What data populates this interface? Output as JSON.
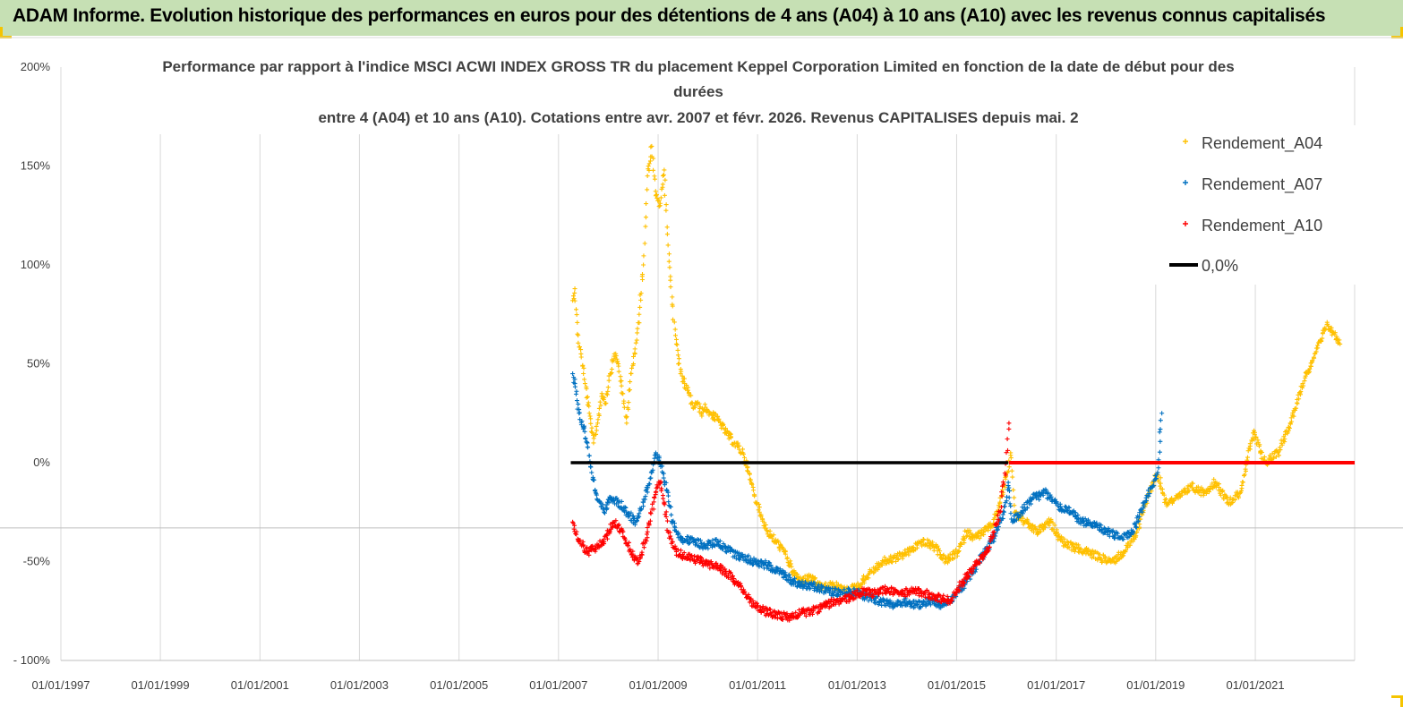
{
  "banner": {
    "title": "ADAM Informe. Evolution historique des performances en euros pour des détentions de 4 ans (A04) à 10 ans (A10) avec les revenus connus capitalisés",
    "background": "#c6e0b4",
    "corner_color": "#f5c400"
  },
  "chart_data": {
    "type": "scatter",
    "title_lines": [
      "Performance par rapport à l'indice MSCI ACWI INDEX GROSS TR  du placement Keppel Corporation Limited en fonction de la date de début pour des",
      "durées",
      "entre 4 (A04) et 10 ans (A10). Cotations entre avr. 2007 et févr. 2026. Revenus CAPITALISES depuis mai. 2"
    ],
    "x_axis": {
      "type": "date",
      "min": "1997-01-01",
      "max": "2022-12-31",
      "tick_labels": [
        "01/01/1997",
        "01/01/1999",
        "01/01/2001",
        "01/01/2003",
        "01/01/2005",
        "01/01/2007",
        "01/01/2009",
        "01/01/2011",
        "01/01/2013",
        "01/01/2015",
        "01/01/2017",
        "01/01/2019",
        "01/01/2021"
      ],
      "tick_dates": [
        "1997-01-01",
        "1999-01-01",
        "2001-01-01",
        "2003-01-01",
        "2005-01-01",
        "2007-01-01",
        "2009-01-01",
        "2011-01-01",
        "2013-01-01",
        "2015-01-01",
        "2017-01-01",
        "2019-01-01",
        "2021-01-01"
      ]
    },
    "y_axis": {
      "min": -100,
      "max": 200,
      "unit": "%",
      "tick_values": [
        200,
        150,
        100,
        50,
        0,
        -50,
        -100
      ],
      "tick_labels": [
        "200%",
        "150%",
        "100%",
        "50%",
        "0%",
        "-50%",
        "- 100%"
      ]
    },
    "grid": "vertical",
    "legend": {
      "placement": "top-right",
      "entries": [
        {
          "label": "Rendement_A04",
          "color": "#ffc000",
          "marker": "+"
        },
        {
          "label": "Rendement_A07",
          "color": "#0070c0",
          "marker": "+"
        },
        {
          "label": "Rendement_A10",
          "color": "#ff0000",
          "marker": "+"
        },
        {
          "label": "0,0%",
          "color": "#000000",
          "marker": "line"
        }
      ]
    },
    "series": [
      {
        "name": "Rendement_A04",
        "color": "#ffc000",
        "points": [
          [
            "2007-04-15",
            82
          ],
          [
            "2007-05-01",
            88
          ],
          [
            "2007-05-20",
            65
          ],
          [
            "2007-06-15",
            55
          ],
          [
            "2007-07-15",
            40
          ],
          [
            "2007-08-15",
            25
          ],
          [
            "2007-09-15",
            10
          ],
          [
            "2007-10-15",
            20
          ],
          [
            "2007-11-15",
            35
          ],
          [
            "2007-12-15",
            30
          ],
          [
            "2008-01-15",
            45
          ],
          [
            "2008-02-15",
            55
          ],
          [
            "2008-03-15",
            50
          ],
          [
            "2008-04-15",
            35
          ],
          [
            "2008-05-15",
            20
          ],
          [
            "2008-06-15",
            45
          ],
          [
            "2008-07-15",
            55
          ],
          [
            "2008-08-15",
            75
          ],
          [
            "2008-09-15",
            100
          ],
          [
            "2008-10-15",
            145
          ],
          [
            "2008-11-15",
            160
          ],
          [
            "2008-12-15",
            135
          ],
          [
            "2009-01-15",
            130
          ],
          [
            "2009-02-15",
            148
          ],
          [
            "2009-03-15",
            110
          ],
          [
            "2009-04-15",
            80
          ],
          [
            "2009-05-15",
            60
          ],
          [
            "2009-06-15",
            45
          ],
          [
            "2009-07-15",
            40
          ],
          [
            "2009-08-15",
            35
          ],
          [
            "2009-09-15",
            28
          ],
          [
            "2009-10-15",
            30
          ],
          [
            "2009-11-15",
            25
          ],
          [
            "2009-12-15",
            28
          ],
          [
            "2010-01-15",
            25
          ],
          [
            "2010-03-15",
            22
          ],
          [
            "2010-05-15",
            15
          ],
          [
            "2010-07-15",
            10
          ],
          [
            "2010-09-15",
            5
          ],
          [
            "2010-11-15",
            -10
          ],
          [
            "2011-01-15",
            -25
          ],
          [
            "2011-03-15",
            -35
          ],
          [
            "2011-05-15",
            -40
          ],
          [
            "2011-07-15",
            -45
          ],
          [
            "2011-09-15",
            -55
          ],
          [
            "2011-11-15",
            -60
          ],
          [
            "2012-01-15",
            -58
          ],
          [
            "2012-04-15",
            -63
          ],
          [
            "2012-07-15",
            -62
          ],
          [
            "2012-10-15",
            -65
          ],
          [
            "2013-01-15",
            -62
          ],
          [
            "2013-04-15",
            -55
          ],
          [
            "2013-07-15",
            -50
          ],
          [
            "2013-10-15",
            -48
          ],
          [
            "2014-01-15",
            -45
          ],
          [
            "2014-04-15",
            -40
          ],
          [
            "2014-07-15",
            -42
          ],
          [
            "2014-10-15",
            -50
          ],
          [
            "2015-01-15",
            -45
          ],
          [
            "2015-03-15",
            -35
          ],
          [
            "2015-05-15",
            -38
          ],
          [
            "2015-07-15",
            -35
          ],
          [
            "2015-09-15",
            -32
          ],
          [
            "2015-11-15",
            -20
          ],
          [
            "2016-01-10",
            -5
          ],
          [
            "2016-02-01",
            5
          ],
          [
            "2016-03-01",
            -25
          ],
          [
            "2016-05-15",
            -30
          ],
          [
            "2016-08-15",
            -35
          ],
          [
            "2016-11-15",
            -30
          ],
          [
            "2017-02-15",
            -40
          ],
          [
            "2017-05-15",
            -43
          ],
          [
            "2017-08-15",
            -45
          ],
          [
            "2017-11-15",
            -48
          ],
          [
            "2018-02-15",
            -50
          ],
          [
            "2018-05-15",
            -45
          ],
          [
            "2018-08-15",
            -35
          ],
          [
            "2018-11-15",
            -15
          ],
          [
            "2019-01-15",
            -5
          ],
          [
            "2019-03-15",
            -20
          ],
          [
            "2019-06-15",
            -18
          ],
          [
            "2019-09-15",
            -12
          ],
          [
            "2019-12-15",
            -15
          ],
          [
            "2020-03-15",
            -10
          ],
          [
            "2020-06-15",
            -20
          ],
          [
            "2020-09-15",
            -15
          ],
          [
            "2020-12-15",
            15
          ],
          [
            "2021-03-15",
            0
          ],
          [
            "2021-06-15",
            5
          ],
          [
            "2021-09-15",
            20
          ],
          [
            "2021-12-15",
            40
          ],
          [
            "2022-03-15",
            55
          ],
          [
            "2022-06-15",
            70
          ],
          [
            "2022-09-15",
            60
          ]
        ]
      },
      {
        "name": "Rendement_A07",
        "color": "#0070c0",
        "points": [
          [
            "2007-04-15",
            45
          ],
          [
            "2007-05-01",
            40
          ],
          [
            "2007-06-01",
            25
          ],
          [
            "2007-07-01",
            18
          ],
          [
            "2007-08-01",
            10
          ],
          [
            "2007-09-01",
            -5
          ],
          [
            "2007-10-01",
            -15
          ],
          [
            "2007-11-01",
            -20
          ],
          [
            "2007-12-01",
            -25
          ],
          [
            "2008-01-15",
            -18
          ],
          [
            "2008-03-15",
            -20
          ],
          [
            "2008-05-15",
            -25
          ],
          [
            "2008-07-15",
            -30
          ],
          [
            "2008-09-15",
            -20
          ],
          [
            "2008-11-15",
            -5
          ],
          [
            "2008-12-15",
            5
          ],
          [
            "2009-01-15",
            0
          ],
          [
            "2009-02-15",
            -10
          ],
          [
            "2009-03-15",
            -15
          ],
          [
            "2009-04-15",
            -30
          ],
          [
            "2009-06-15",
            -38
          ],
          [
            "2009-09-15",
            -40
          ],
          [
            "2009-12-15",
            -42
          ],
          [
            "2010-03-15",
            -40
          ],
          [
            "2010-06-15",
            -45
          ],
          [
            "2010-09-15",
            -48
          ],
          [
            "2010-12-15",
            -50
          ],
          [
            "2011-03-15",
            -52
          ],
          [
            "2011-06-15",
            -55
          ],
          [
            "2011-09-15",
            -60
          ],
          [
            "2011-12-15",
            -62
          ],
          [
            "2012-03-15",
            -63
          ],
          [
            "2012-06-15",
            -65
          ],
          [
            "2012-09-15",
            -66
          ],
          [
            "2012-12-15",
            -65
          ],
          [
            "2013-03-15",
            -68
          ],
          [
            "2013-06-15",
            -70
          ],
          [
            "2013-09-15",
            -72
          ],
          [
            "2013-12-15",
            -70
          ],
          [
            "2014-03-15",
            -72
          ],
          [
            "2014-06-15",
            -70
          ],
          [
            "2014-09-15",
            -72
          ],
          [
            "2014-12-15",
            -68
          ],
          [
            "2015-03-15",
            -60
          ],
          [
            "2015-06-15",
            -50
          ],
          [
            "2015-09-15",
            -40
          ],
          [
            "2015-12-15",
            -25
          ],
          [
            "2016-01-15",
            -10
          ],
          [
            "2016-02-15",
            -30
          ],
          [
            "2016-04-15",
            -25
          ],
          [
            "2016-07-15",
            -18
          ],
          [
            "2016-10-15",
            -15
          ],
          [
            "2017-01-15",
            -22
          ],
          [
            "2017-04-15",
            -25
          ],
          [
            "2017-07-15",
            -30
          ],
          [
            "2017-10-15",
            -32
          ],
          [
            "2018-01-15",
            -35
          ],
          [
            "2018-04-15",
            -38
          ],
          [
            "2018-07-15",
            -35
          ],
          [
            "2018-10-15",
            -20
          ],
          [
            "2019-01-15",
            -5
          ],
          [
            "2019-02-15",
            25
          ]
        ]
      },
      {
        "name": "Rendement_A10",
        "color": "#ff0000",
        "points": [
          [
            "2007-04-15",
            -30
          ],
          [
            "2007-06-01",
            -40
          ],
          [
            "2007-08-01",
            -45
          ],
          [
            "2007-10-01",
            -43
          ],
          [
            "2007-12-01",
            -40
          ],
          [
            "2008-02-15",
            -30
          ],
          [
            "2008-04-15",
            -35
          ],
          [
            "2008-06-15",
            -45
          ],
          [
            "2008-08-15",
            -50
          ],
          [
            "2008-10-15",
            -35
          ],
          [
            "2008-12-15",
            -15
          ],
          [
            "2009-01-15",
            -10
          ],
          [
            "2009-02-15",
            -20
          ],
          [
            "2009-03-15",
            -35
          ],
          [
            "2009-05-15",
            -45
          ],
          [
            "2009-08-15",
            -48
          ],
          [
            "2009-11-15",
            -50
          ],
          [
            "2010-02-15",
            -52
          ],
          [
            "2010-05-15",
            -55
          ],
          [
            "2010-08-15",
            -62
          ],
          [
            "2010-11-15",
            -70
          ],
          [
            "2011-02-15",
            -75
          ],
          [
            "2011-05-15",
            -77
          ],
          [
            "2011-08-15",
            -78
          ],
          [
            "2011-11-15",
            -76
          ],
          [
            "2012-02-15",
            -75
          ],
          [
            "2012-05-15",
            -72
          ],
          [
            "2012-08-15",
            -70
          ],
          [
            "2012-11-15",
            -68
          ],
          [
            "2013-02-15",
            -65
          ],
          [
            "2013-05-15",
            -66
          ],
          [
            "2013-08-15",
            -64
          ],
          [
            "2013-11-15",
            -66
          ],
          [
            "2014-02-15",
            -65
          ],
          [
            "2014-05-15",
            -66
          ],
          [
            "2014-08-15",
            -68
          ],
          [
            "2014-11-15",
            -70
          ],
          [
            "2015-02-15",
            -60
          ],
          [
            "2015-05-15",
            -52
          ],
          [
            "2015-08-15",
            -45
          ],
          [
            "2015-11-15",
            -25
          ],
          [
            "2016-01-01",
            0
          ],
          [
            "2016-01-20",
            20
          ]
        ]
      },
      {
        "name": "0,0%",
        "color": "#000000",
        "kind": "line",
        "points": [
          [
            "2007-04-01",
            0
          ],
          [
            "2016-01-15",
            0
          ]
        ]
      }
    ],
    "extra": {
      "a10_zero_run": {
        "color": "#ff0000",
        "from": "2016-01-20",
        "to": "2022-12-31",
        "value": 0
      }
    }
  }
}
